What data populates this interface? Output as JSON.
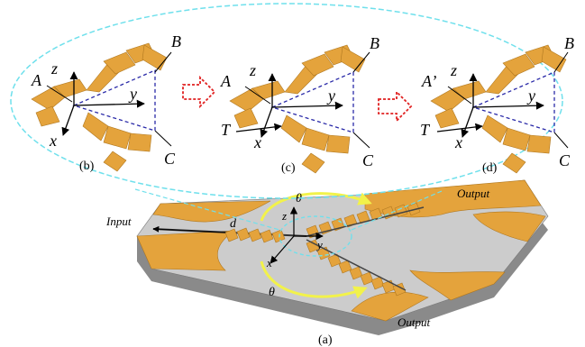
{
  "panel_b": {
    "A": "A",
    "B": "B",
    "C": "C",
    "z": "z",
    "y": "y",
    "x": "x",
    "caption": "(b)"
  },
  "panel_c": {
    "A": "A",
    "B": "B",
    "C": "C",
    "T": "T",
    "z": "z",
    "y": "y",
    "x": "x",
    "caption": "(c)"
  },
  "panel_d": {
    "A": "A’",
    "B": "B",
    "C": "C",
    "T": "T",
    "z": "z",
    "y": "y",
    "x": "x",
    "caption": "(d)"
  },
  "main": {
    "input": "Input",
    "output_top": "Output",
    "output_bottom": "Output",
    "theta_top": "θ",
    "theta_bottom": "θ",
    "d": "d",
    "z": "z",
    "y": "y",
    "x": "x",
    "caption": "(a)"
  },
  "colors": {
    "gold": "#e4a33c",
    "gold_dark": "#b07820",
    "substrate_top": "#c9c9c9",
    "substrate_side": "#8a8a8a",
    "ellipse": "#6fe0ec",
    "arrow_red": "#e02020",
    "arrow_yellow": "#f2f24a",
    "triangle_blue": "#2a2aa8"
  }
}
